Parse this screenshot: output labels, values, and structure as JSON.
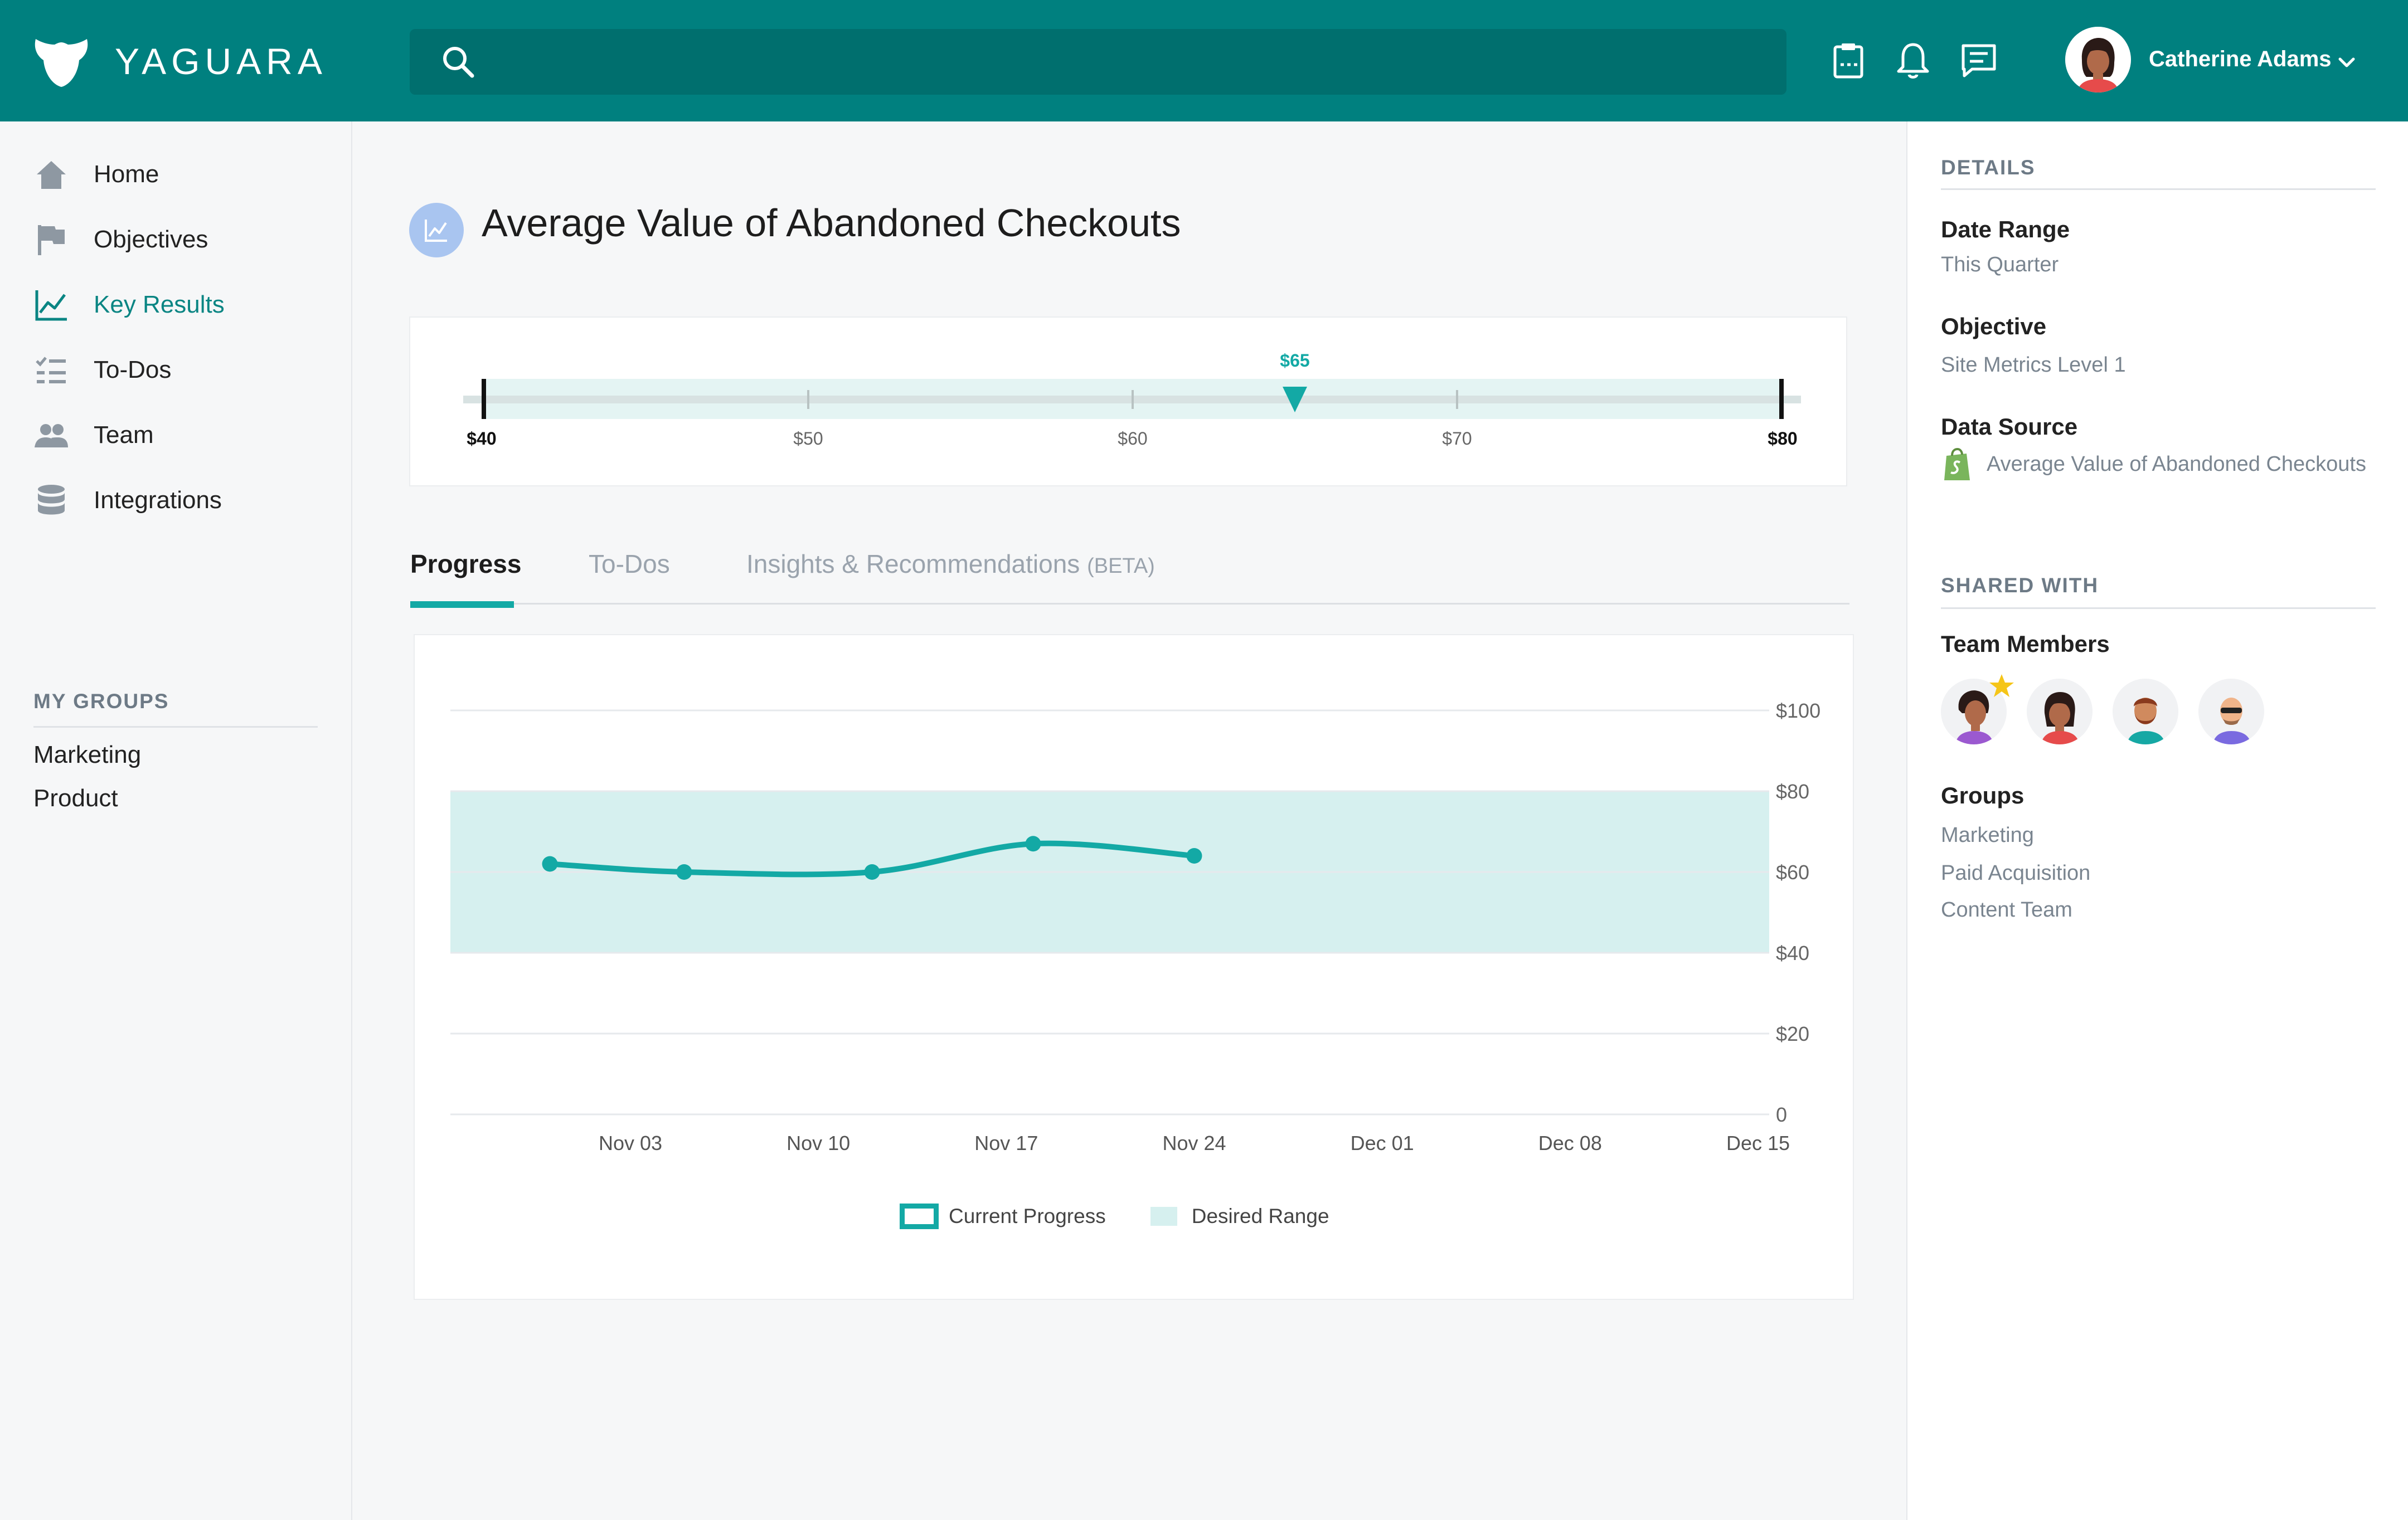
{
  "app": {
    "brand": "YAGUARA"
  },
  "header": {
    "search_placeholder": "",
    "user_name": "Catherine Adams",
    "icons": [
      "clipboard-icon",
      "bell-icon",
      "chat-icon",
      "chevron-down-icon",
      "search-icon"
    ]
  },
  "sidebar": {
    "items": [
      {
        "label": "Home",
        "icon": "home-icon"
      },
      {
        "label": "Objectives",
        "icon": "flag-icon"
      },
      {
        "label": "Key Results",
        "icon": "chart-line-icon",
        "active": true
      },
      {
        "label": "To-Dos",
        "icon": "checklist-icon"
      },
      {
        "label": "Team",
        "icon": "people-icon"
      },
      {
        "label": "Integrations",
        "icon": "database-icon"
      }
    ],
    "groups_heading": "MY GROUPS",
    "groups": [
      "Marketing",
      "Product"
    ]
  },
  "main": {
    "title": "Average Value of Abandoned Checkouts",
    "range": {
      "min_label": "$40",
      "max_label": "$80",
      "ticks": [
        "$50",
        "$60",
        "$70"
      ],
      "current_label": "$65",
      "min": 40,
      "max": 80,
      "current": 65
    },
    "tabs": [
      {
        "label": "Progress",
        "active": true
      },
      {
        "label": "To-Dos"
      },
      {
        "label": "Insights & Recommendations",
        "suffix": "(BETA)"
      }
    ],
    "legend": {
      "current": "Current Progress",
      "desired": "Desired Range"
    }
  },
  "chart_data": {
    "type": "line",
    "x_labels": [
      "Nov 03",
      "Nov 10",
      "Nov 17",
      "Nov 24",
      "Dec 01",
      "Dec 08",
      "Dec 15"
    ],
    "y_ticks": [
      "$100",
      "$80",
      "$60",
      "$40",
      "$20",
      "0"
    ],
    "ylim": [
      0,
      100
    ],
    "desired_range": [
      40,
      80
    ],
    "series": [
      {
        "name": "Current Progress",
        "points": [
          {
            "x": "Oct 31",
            "y": 62
          },
          {
            "x": "Nov 05",
            "y": 60
          },
          {
            "x": "Nov 12",
            "y": 60
          },
          {
            "x": "Nov 18",
            "y": 67
          },
          {
            "x": "Nov 24",
            "y": 64
          }
        ]
      }
    ],
    "color": "#13a9a5",
    "range_color": "#d6f0ef",
    "grid": true,
    "legend_position": "bottom"
  },
  "details": {
    "heading": "DETAILS",
    "date_range_label": "Date Range",
    "date_range_value": "This Quarter",
    "objective_label": "Objective",
    "objective_value": "Site Metrics Level 1",
    "data_source_label": "Data Source",
    "data_source_value": "Average Value of Abandoned Checkouts"
  },
  "shared": {
    "heading": "SHARED WITH",
    "team_label": "Team Members",
    "groups_label": "Groups",
    "groups": [
      "Marketing",
      "Paid Acquisition",
      "Content Team"
    ]
  },
  "colors": {
    "brand": "#00807f",
    "accent": "#13a9a5",
    "range": "#d6f0ef"
  }
}
